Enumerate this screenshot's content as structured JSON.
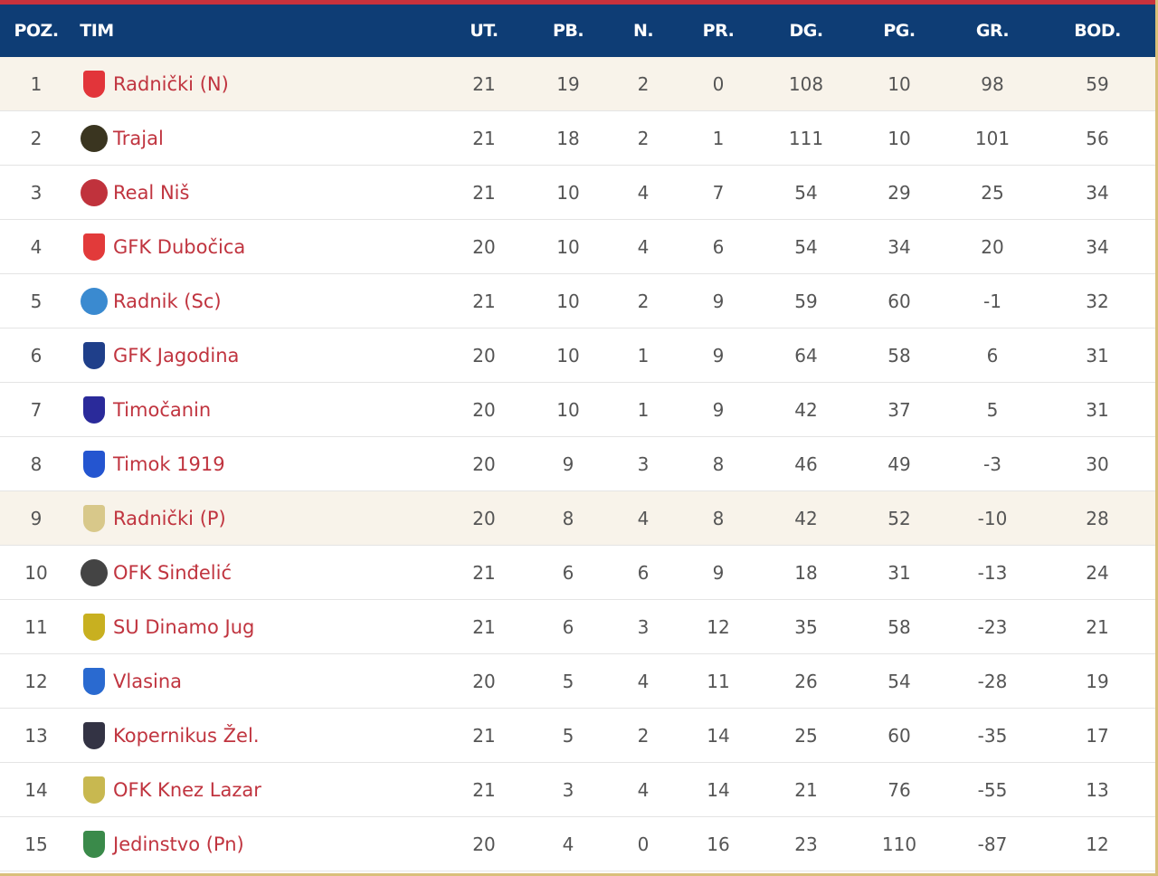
{
  "colors": {
    "header_bg": "#0e3d75",
    "top_bar": "#c8323c",
    "team_link": "#c0343f",
    "highlight_row": "#f8f3ea",
    "border": "#d9bf7a"
  },
  "headers": [
    "POZ.",
    "TIM",
    "UT.",
    "PB.",
    "N.",
    "PR.",
    "DG.",
    "PG.",
    "GR.",
    "BOD."
  ],
  "rows": [
    {
      "pos": "1",
      "team": "Radnički (N)",
      "logo": "radnicki-nis-logo",
      "logo_color": "#e2353a",
      "shape": "shield",
      "ut": "21",
      "pb": "19",
      "n": "2",
      "pr": "0",
      "dg": "108",
      "pg": "10",
      "gr": "98",
      "bod": "59",
      "hl": true
    },
    {
      "pos": "2",
      "team": "Trajal",
      "logo": "trajal-logo",
      "logo_color": "#3a3520",
      "shape": "circle",
      "ut": "21",
      "pb": "18",
      "n": "2",
      "pr": "1",
      "dg": "111",
      "pg": "10",
      "gr": "101",
      "bod": "56"
    },
    {
      "pos": "3",
      "team": "Real Niš",
      "logo": "real-nis-logo",
      "logo_color": "#c0323c",
      "shape": "circle",
      "ut": "21",
      "pb": "10",
      "n": "4",
      "pr": "7",
      "dg": "54",
      "pg": "29",
      "gr": "25",
      "bod": "34"
    },
    {
      "pos": "4",
      "team": "GFK Dubočica",
      "logo": "dubocica-logo",
      "logo_color": "#e23a3a",
      "shape": "shield",
      "ut": "20",
      "pb": "10",
      "n": "4",
      "pr": "6",
      "dg": "54",
      "pg": "34",
      "gr": "20",
      "bod": "34"
    },
    {
      "pos": "5",
      "team": "Radnik (Sc)",
      "logo": "radnik-logo",
      "logo_color": "#3a8ad0",
      "shape": "circle",
      "ut": "21",
      "pb": "10",
      "n": "2",
      "pr": "9",
      "dg": "59",
      "pg": "60",
      "gr": "-1",
      "bod": "32"
    },
    {
      "pos": "6",
      "team": "GFK Jagodina",
      "logo": "jagodina-logo",
      "logo_color": "#1f3f8a",
      "shape": "shield",
      "ut": "20",
      "pb": "10",
      "n": "1",
      "pr": "9",
      "dg": "64",
      "pg": "58",
      "gr": "6",
      "bod": "31"
    },
    {
      "pos": "7",
      "team": "Timočanin",
      "logo": "timocanin-logo",
      "logo_color": "#2a2a9a",
      "shape": "shield",
      "ut": "20",
      "pb": "10",
      "n": "1",
      "pr": "9",
      "dg": "42",
      "pg": "37",
      "gr": "5",
      "bod": "31"
    },
    {
      "pos": "8",
      "team": "Timok 1919",
      "logo": "timok-logo",
      "logo_color": "#2455d0",
      "shape": "shield",
      "ut": "20",
      "pb": "9",
      "n": "3",
      "pr": "8",
      "dg": "46",
      "pg": "49",
      "gr": "-3",
      "bod": "30"
    },
    {
      "pos": "9",
      "team": "Radnički (P)",
      "logo": "radnicki-p-logo",
      "logo_color": "#d8c88a",
      "shape": "shield",
      "ut": "20",
      "pb": "8",
      "n": "4",
      "pr": "8",
      "dg": "42",
      "pg": "52",
      "gr": "-10",
      "bod": "28",
      "hl": true
    },
    {
      "pos": "10",
      "team": "OFK Sinđelić",
      "logo": "sindjelic-logo",
      "logo_color": "#444444",
      "shape": "circle",
      "ut": "21",
      "pb": "6",
      "n": "6",
      "pr": "9",
      "dg": "18",
      "pg": "31",
      "gr": "-13",
      "bod": "24"
    },
    {
      "pos": "11",
      "team": "SU Dinamo Jug",
      "logo": "dinamo-jug-logo",
      "logo_color": "#c8b020",
      "shape": "shield",
      "ut": "21",
      "pb": "6",
      "n": "3",
      "pr": "12",
      "dg": "35",
      "pg": "58",
      "gr": "-23",
      "bod": "21"
    },
    {
      "pos": "12",
      "team": "Vlasina",
      "logo": "vlasina-logo",
      "logo_color": "#2a6ad0",
      "shape": "shield",
      "ut": "20",
      "pb": "5",
      "n": "4",
      "pr": "11",
      "dg": "26",
      "pg": "54",
      "gr": "-28",
      "bod": "19"
    },
    {
      "pos": "13",
      "team": "Kopernikus Žel.",
      "logo": "kopernikus-logo",
      "logo_color": "#333344",
      "shape": "shield",
      "ut": "21",
      "pb": "5",
      "n": "2",
      "pr": "14",
      "dg": "25",
      "pg": "60",
      "gr": "-35",
      "bod": "17"
    },
    {
      "pos": "14",
      "team": "OFK Knez Lazar",
      "logo": "knez-lazar-logo",
      "logo_color": "#c8b850",
      "shape": "shield",
      "ut": "21",
      "pb": "3",
      "n": "4",
      "pr": "14",
      "dg": "21",
      "pg": "76",
      "gr": "-55",
      "bod": "13"
    },
    {
      "pos": "15",
      "team": "Jedinstvo (Pn)",
      "logo": "jedinstvo-logo",
      "logo_color": "#3a8a4a",
      "shape": "shield",
      "ut": "20",
      "pb": "4",
      "n": "0",
      "pr": "16",
      "dg": "23",
      "pg": "110",
      "gr": "-87",
      "bod": "12"
    }
  ]
}
